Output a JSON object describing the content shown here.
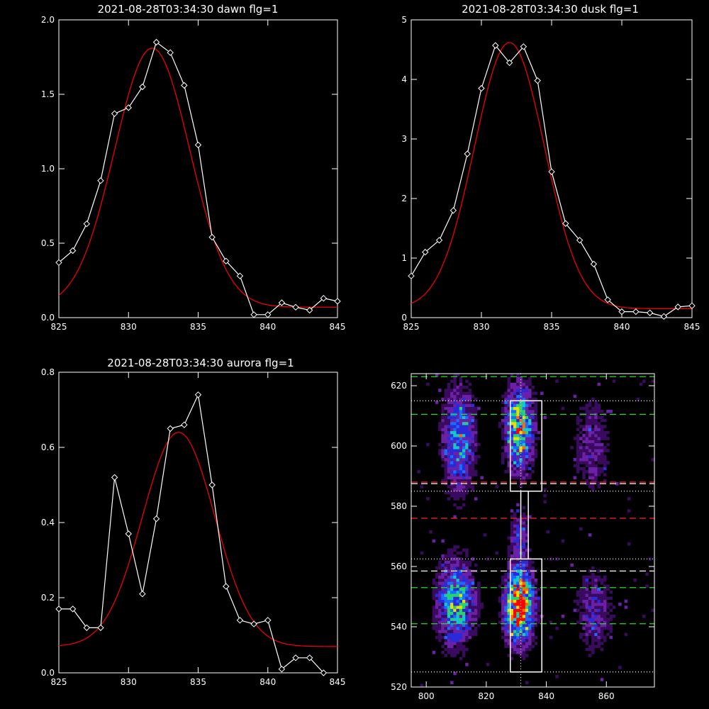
{
  "chart_data": [
    {
      "type": "line",
      "title": "2021-08-28T03:34:30 dawn flg=1",
      "xlim": [
        825,
        845
      ],
      "ylim": [
        0,
        2.0
      ],
      "x_ticks": [
        "825",
        "830",
        "835",
        "840",
        "845"
      ],
      "y_ticks": [
        "0.0",
        "0.5",
        "1.0",
        "1.5",
        "2.0"
      ],
      "series": [
        {
          "kind": "observed",
          "color": "#ffffff",
          "marker": "diamond",
          "x": [
            825,
            826,
            827,
            828,
            829,
            830,
            831,
            832,
            833,
            834,
            835,
            836,
            837,
            838,
            839,
            840,
            841,
            842,
            843,
            844,
            845
          ],
          "y": [
            0.37,
            0.45,
            0.63,
            0.92,
            1.37,
            1.41,
            1.55,
            1.85,
            1.78,
            1.56,
            1.16,
            0.54,
            0.38,
            0.28,
            0.02,
            0.02,
            0.1,
            0.07,
            0.05,
            0.13,
            0.11
          ]
        },
        {
          "kind": "fit",
          "color": "#ff0000",
          "gauss": {
            "base": 0.07,
            "amp": 1.74,
            "center": 831.7,
            "sigma": 2.7
          }
        }
      ]
    },
    {
      "type": "line",
      "title": "2021-08-28T03:34:30 dusk flg=1",
      "xlim": [
        825,
        845
      ],
      "ylim": [
        0,
        5
      ],
      "x_ticks": [
        "825",
        "830",
        "835",
        "840",
        "845"
      ],
      "y_ticks": [
        "0",
        "1",
        "2",
        "3",
        "4",
        "5"
      ],
      "series": [
        {
          "kind": "observed",
          "color": "#ffffff",
          "marker": "diamond",
          "x": [
            825,
            826,
            827,
            828,
            829,
            830,
            831,
            832,
            833,
            834,
            835,
            836,
            837,
            838,
            839,
            840,
            841,
            842,
            843,
            844,
            845
          ],
          "y": [
            0.7,
            1.1,
            1.3,
            1.8,
            2.75,
            3.85,
            4.57,
            4.28,
            4.55,
            3.98,
            2.45,
            1.58,
            1.3,
            0.9,
            0.3,
            0.1,
            0.1,
            0.08,
            0.02,
            0.18,
            0.2
          ]
        },
        {
          "kind": "fit",
          "color": "#ff0000",
          "gauss": {
            "base": 0.15,
            "amp": 4.47,
            "center": 832.0,
            "sigma": 2.5
          }
        }
      ]
    },
    {
      "type": "line",
      "title": "2021-08-28T03:34:30 aurora flg=1",
      "xlim": [
        825,
        845
      ],
      "ylim": [
        0,
        0.8
      ],
      "x_ticks": [
        "825",
        "830",
        "835",
        "840",
        "845"
      ],
      "y_ticks": [
        "0.0",
        "0.2",
        "0.4",
        "0.6",
        "0.8"
      ],
      "series": [
        {
          "kind": "observed",
          "color": "#ffffff",
          "marker": "diamond",
          "x": [
            825,
            826,
            827,
            828,
            829,
            830,
            831,
            832,
            833,
            834,
            835,
            836,
            837,
            838,
            839,
            840,
            841,
            842,
            843,
            844
          ],
          "y": [
            0.17,
            0.17,
            0.12,
            0.12,
            0.52,
            0.37,
            0.21,
            0.41,
            0.65,
            0.66,
            0.74,
            0.5,
            0.23,
            0.14,
            0.13,
            0.14,
            0.01,
            0.04,
            0.04,
            0.0
          ]
        },
        {
          "kind": "fit",
          "color": "#ff0000",
          "gauss": {
            "base": 0.07,
            "amp": 0.57,
            "center": 833.6,
            "sigma": 2.6
          }
        }
      ]
    },
    {
      "type": "heatmap",
      "title": "",
      "xlim": [
        795,
        876
      ],
      "ylim": [
        520,
        624
      ],
      "x_ticks": [
        "800",
        "820",
        "840",
        "860"
      ],
      "y_ticks": [
        "520",
        "540",
        "560",
        "580",
        "600",
        "620"
      ],
      "colormap": [
        "#000000",
        "#3a0a5e",
        "#6b20a6",
        "#2a2ad8",
        "#1a6cff",
        "#15c8c8",
        "#27d36a",
        "#e8e000",
        "#ff6a00",
        "#ff0000"
      ],
      "blobs": [
        {
          "x": 810,
          "y": 548,
          "w": 4,
          "h": 9,
          "amp": 0.55
        },
        {
          "x": 811,
          "y": 602,
          "w": 3.5,
          "h": 11,
          "amp": 0.45
        },
        {
          "x": 831,
          "y": 547,
          "w": 3,
          "h": 8,
          "amp": 1.0
        },
        {
          "x": 831,
          "y": 606,
          "w": 3,
          "h": 9,
          "amp": 0.7
        },
        {
          "x": 831,
          "y": 570,
          "w": 2,
          "h": 6,
          "amp": 0.25
        },
        {
          "x": 856,
          "y": 545,
          "w": 4,
          "h": 9,
          "amp": 0.22
        },
        {
          "x": 855,
          "y": 600,
          "w": 4,
          "h": 10,
          "amp": 0.2
        }
      ],
      "overlays": {
        "vertical_dotted_x": 831.5,
        "hlines": [
          {
            "y": 623,
            "style": "dashed",
            "color": "#22dd22"
          },
          {
            "y": 615,
            "style": "dotted",
            "color": "#ffffff"
          },
          {
            "y": 610.5,
            "style": "dashed",
            "color": "#22dd22"
          },
          {
            "y": 588,
            "style": "dashed",
            "color": "#ff2222"
          },
          {
            "y": 587.5,
            "style": "dashed",
            "color": "#ffffff"
          },
          {
            "y": 585,
            "style": "dotted",
            "color": "#ffffff"
          },
          {
            "y": 576,
            "style": "dashed",
            "color": "#ff2222"
          },
          {
            "y": 562.5,
            "style": "dotted",
            "color": "#ffffff"
          },
          {
            "y": 558.5,
            "style": "dashed",
            "color": "#ffffff"
          },
          {
            "y": 553,
            "style": "dashed",
            "color": "#22dd22"
          },
          {
            "y": 541,
            "style": "dashed",
            "color": "#22dd22"
          },
          {
            "y": 525,
            "style": "dotted",
            "color": "#ffffff"
          }
        ],
        "boxes": [
          {
            "x0": 828,
            "x1": 838.5,
            "y0": 585,
            "y1": 615
          },
          {
            "x0": 828,
            "x1": 838.5,
            "y0": 525,
            "y1": 562.5
          }
        ],
        "connector": {
          "x0": 831.5,
          "x1": 834,
          "y0": 562.5,
          "y1": 585
        }
      }
    }
  ]
}
